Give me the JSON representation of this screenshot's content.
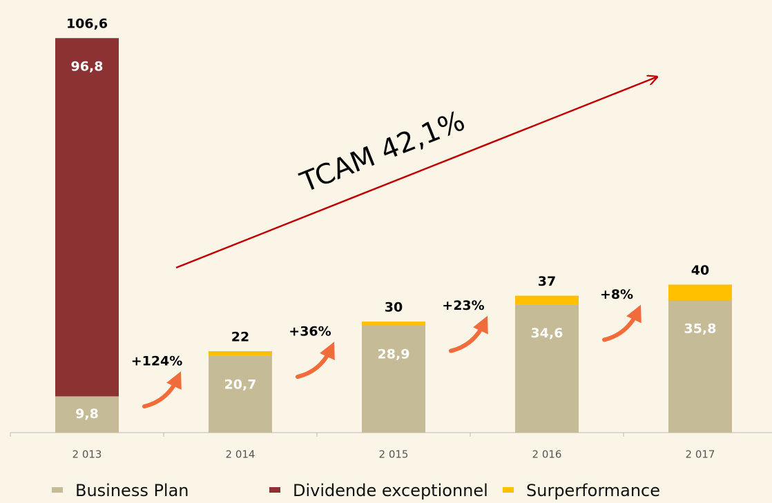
{
  "chart_data": {
    "type": "stacked-bar",
    "categories": [
      "2 013",
      "2 014",
      "2 015",
      "2 016",
      "2 017"
    ],
    "series": [
      {
        "name": "Business Plan",
        "color": "#c5bb97",
        "values": [
          9.8,
          20.7,
          28.9,
          34.6,
          35.8
        ],
        "value_labels": [
          "9,8",
          "20,7",
          "28,9",
          "34,6",
          "35,8"
        ]
      },
      {
        "name": "Dividende exceptionnel",
        "color": "#8c3232",
        "values": [
          96.8,
          null,
          null,
          null,
          null
        ],
        "value_labels": [
          "96,8",
          null,
          null,
          null,
          null
        ]
      },
      {
        "name": "Surperformance",
        "color": "#ffc000",
        "values": [
          null,
          1.3,
          1.1,
          2.4,
          4.2
        ]
      }
    ],
    "totals": [
      106.6,
      22,
      30,
      37,
      40
    ],
    "total_labels": [
      "106,6",
      "22",
      "30",
      "37",
      "40"
    ],
    "growth_labels": [
      "+124%",
      "+36%",
      "+23%",
      "+8%"
    ],
    "trend_label": "TCAM 42,1%",
    "ylim": [
      0,
      110
    ],
    "legend": "bottom"
  }
}
